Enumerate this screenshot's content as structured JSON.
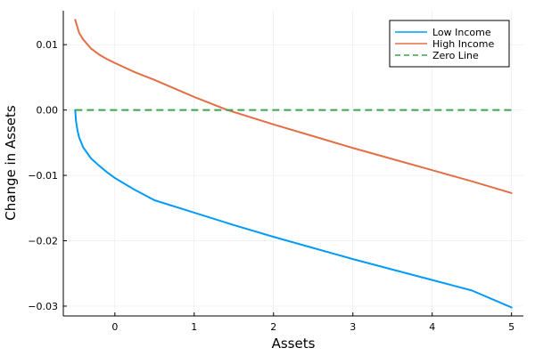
{
  "chart_data": {
    "type": "line",
    "xlabel": "Assets",
    "ylabel": "Change in Assets",
    "xlim": [
      -0.65,
      5.15
    ],
    "ylim": [
      -0.0315,
      0.0152
    ],
    "x_ticks": [
      0,
      1,
      2,
      3,
      4,
      5
    ],
    "x_tick_labels": [
      "0",
      "1",
      "2",
      "3",
      "4",
      "5"
    ],
    "y_ticks": [
      -0.03,
      -0.02,
      -0.01,
      0.0,
      0.01
    ],
    "y_tick_labels": [
      "−0.03",
      "−0.02",
      "−0.01",
      "0.00",
      "0.01"
    ],
    "grid": true,
    "legend_position": "top-right",
    "series": [
      {
        "name": "Low Income",
        "color": "#009af9",
        "style": "solid",
        "x": [
          -0.5,
          -0.49,
          -0.47,
          -0.45,
          -0.4,
          -0.3,
          -0.2,
          -0.1,
          0.0,
          0.25,
          0.5,
          1.0,
          1.5,
          2.0,
          2.5,
          3.0,
          3.5,
          4.0,
          4.5,
          5.0
        ],
        "y": [
          0.0,
          -0.0017,
          -0.0032,
          -0.0042,
          -0.0057,
          -0.0074,
          -0.0085,
          -0.0095,
          -0.0104,
          -0.0122,
          -0.0138,
          -0.0157,
          -0.0176,
          -0.0194,
          -0.0211,
          -0.0228,
          -0.0244,
          -0.026,
          -0.0276,
          -0.0302
        ]
      },
      {
        "name": "High Income",
        "color": "#e26f46",
        "style": "solid",
        "x": [
          -0.5,
          -0.45,
          -0.4,
          -0.3,
          -0.2,
          -0.1,
          0.0,
          0.25,
          0.5,
          1.0,
          1.42,
          2.0,
          2.5,
          3.0,
          3.5,
          4.0,
          4.5,
          5.0
        ],
        "y": [
          0.0138,
          0.0118,
          0.0108,
          0.0094,
          0.0085,
          0.0078,
          0.0072,
          0.0058,
          0.0046,
          0.002,
          0.0,
          -0.0022,
          -0.004,
          -0.0058,
          -0.0075,
          -0.0092,
          -0.0109,
          -0.0127
        ]
      },
      {
        "name": "Zero Line",
        "color": "#3da44d",
        "style": "dashed",
        "x": [
          -0.5,
          5.0
        ],
        "y": [
          0.0,
          0.0
        ]
      }
    ]
  }
}
